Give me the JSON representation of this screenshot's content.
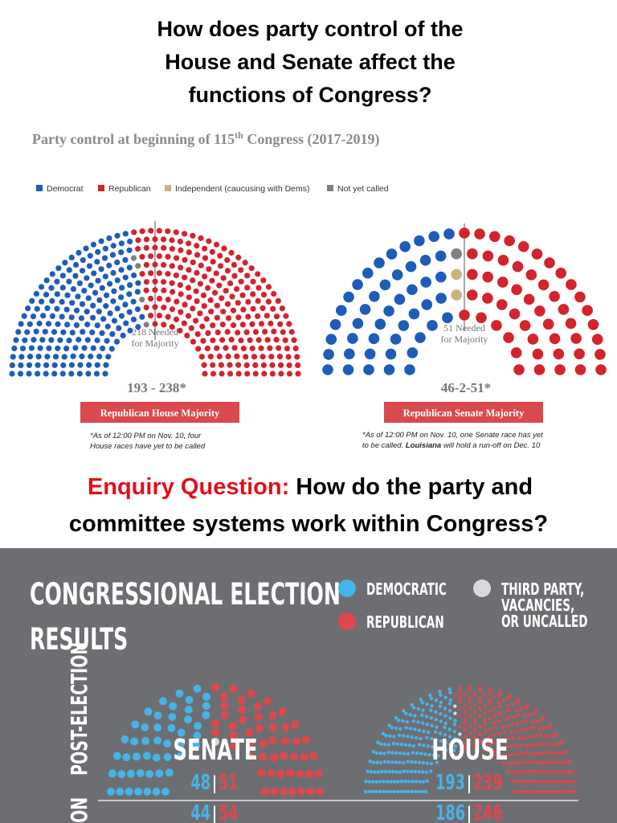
{
  "title": [
    "How does party control of the",
    "House and Senate affect the",
    "functions of Congress?"
  ],
  "subtitle": [
    "Party control at beginning of 115",
    "th",
    " Congress (2017-2019)"
  ],
  "legend": [
    {
      "label": "Democrat",
      "color": "#1f5cb8"
    },
    {
      "label": "Republican",
      "color": "#d3232c"
    },
    {
      "label": "Independent (caucusing with Dems)",
      "color": "#c9b37e"
    },
    {
      "label": "Not yet called",
      "color": "#808080"
    }
  ],
  "house": {
    "seats": [
      193,
      238,
      0,
      4
    ],
    "needed": [
      "218 Needed",
      "for Majority"
    ],
    "score": "193 - 238*",
    "banner": "Republican House Majority",
    "note": [
      "*As of 12:00 PM on Nov. 10, four",
      "House races have yet to be called"
    ]
  },
  "senate": {
    "seats": [
      46,
      51,
      2,
      1
    ],
    "needed": [
      "51 Needed",
      "for Majority"
    ],
    "score": "46-2-51*",
    "banner": "Republican Senate Majority",
    "note": [
      "*As of 12:00 PM on Nov. 10, one Senate race has yet",
      "to be called. ",
      "Louisiana",
      " will hold a run-off on Dec. 10"
    ]
  },
  "enquiry": {
    "label": "Enquiry Question:",
    "text": [
      "How do the party and",
      "committee systems work within Congress?"
    ]
  },
  "results": {
    "title": [
      "CONGRESSIONAL ELECTION",
      "RESULTS"
    ],
    "legend": [
      {
        "label": [
          "DEMOCRATIC"
        ],
        "color": "#45b4e8"
      },
      {
        "label": [
          "REPUBLICAN"
        ],
        "color": "#e0474c"
      },
      {
        "label": [
          "THIRD PARTY,",
          "VACANCIES,",
          "OR UNCALLED"
        ],
        "color": "#d9d9d9"
      }
    ],
    "side": [
      "POST-ELECTION",
      "ON"
    ],
    "senate": {
      "label": "SENATE",
      "seats": [
        48,
        51,
        1
      ],
      "post": [
        "48",
        "51"
      ],
      "pre": [
        "44",
        "54"
      ]
    },
    "house": {
      "label": "HOUSE",
      "seats": [
        193,
        239,
        3
      ],
      "post": [
        "193",
        "239"
      ],
      "pre": [
        "186",
        "246"
      ]
    }
  }
}
